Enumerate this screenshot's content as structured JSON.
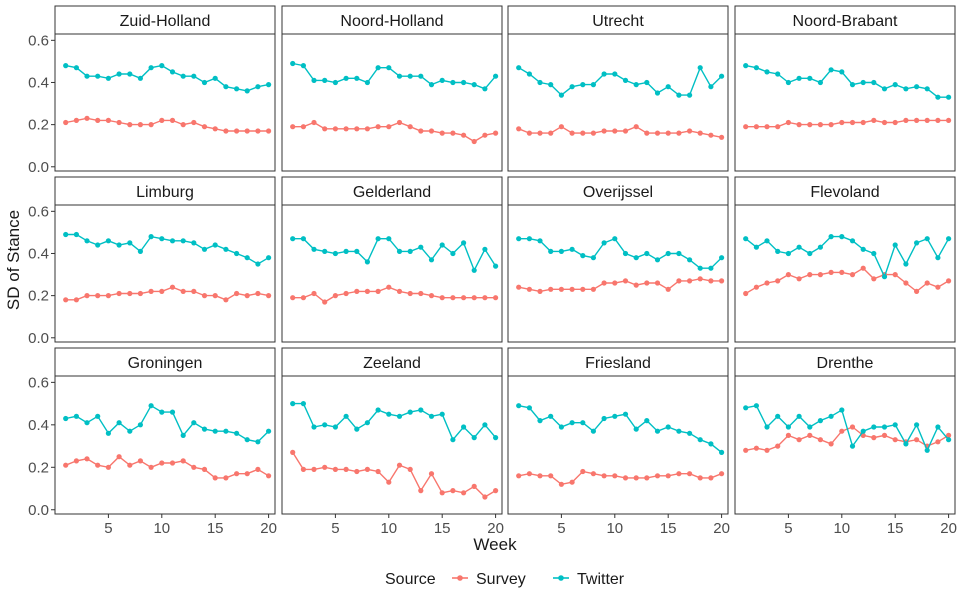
{
  "chart_data": {
    "type": "line",
    "xlabel": "Week",
    "ylabel": "SD of Stance",
    "x": [
      1,
      2,
      3,
      4,
      5,
      6,
      7,
      8,
      9,
      10,
      11,
      12,
      13,
      14,
      15,
      16,
      17,
      18,
      19,
      20
    ],
    "xlim": [
      0,
      20.6
    ],
    "ylim": [
      -0.02,
      0.63
    ],
    "xticks": [
      5,
      10,
      15,
      20
    ],
    "yticks": [
      0.0,
      0.2,
      0.4,
      0.6
    ],
    "ytick_labels": [
      "0.0",
      "0.2",
      "0.4",
      "0.6"
    ],
    "grid": false,
    "legend": {
      "title": "Source",
      "placement": "bottom",
      "entries": [
        {
          "name": "Survey",
          "color": "#F8766D"
        },
        {
          "name": "Twitter",
          "color": "#00BFC4"
        }
      ]
    },
    "series_colors": {
      "Survey": "#F8766D",
      "Twitter": "#00BFC4"
    },
    "facets": [
      {
        "title": "Zuid-Holland",
        "survey": [
          0.21,
          0.22,
          0.23,
          0.22,
          0.22,
          0.21,
          0.2,
          0.2,
          0.2,
          0.22,
          0.22,
          0.2,
          0.21,
          0.19,
          0.18,
          0.17,
          0.17,
          0.17,
          0.17,
          0.17
        ],
        "twitter": [
          0.48,
          0.47,
          0.43,
          0.43,
          0.42,
          0.44,
          0.44,
          0.42,
          0.47,
          0.48,
          0.45,
          0.43,
          0.43,
          0.4,
          0.42,
          0.38,
          0.37,
          0.36,
          0.38,
          0.39
        ]
      },
      {
        "title": "Noord-Holland",
        "survey": [
          0.19,
          0.19,
          0.21,
          0.18,
          0.18,
          0.18,
          0.18,
          0.18,
          0.19,
          0.19,
          0.21,
          0.19,
          0.17,
          0.17,
          0.16,
          0.16,
          0.15,
          0.12,
          0.15,
          0.16
        ],
        "twitter": [
          0.49,
          0.48,
          0.41,
          0.41,
          0.4,
          0.42,
          0.42,
          0.4,
          0.47,
          0.47,
          0.43,
          0.43,
          0.43,
          0.39,
          0.41,
          0.4,
          0.4,
          0.39,
          0.37,
          0.43
        ]
      },
      {
        "title": "Utrecht",
        "survey": [
          0.18,
          0.16,
          0.16,
          0.16,
          0.19,
          0.16,
          0.16,
          0.16,
          0.17,
          0.17,
          0.17,
          0.19,
          0.16,
          0.16,
          0.16,
          0.16,
          0.17,
          0.16,
          0.15,
          0.14
        ],
        "twitter": [
          0.47,
          0.44,
          0.4,
          0.39,
          0.34,
          0.38,
          0.39,
          0.39,
          0.44,
          0.44,
          0.41,
          0.39,
          0.4,
          0.35,
          0.38,
          0.34,
          0.34,
          0.47,
          0.38,
          0.43
        ]
      },
      {
        "title": "Noord-Brabant",
        "survey": [
          0.19,
          0.19,
          0.19,
          0.19,
          0.21,
          0.2,
          0.2,
          0.2,
          0.2,
          0.21,
          0.21,
          0.21,
          0.22,
          0.21,
          0.21,
          0.22,
          0.22,
          0.22,
          0.22,
          0.22
        ],
        "twitter": [
          0.48,
          0.47,
          0.45,
          0.44,
          0.4,
          0.42,
          0.42,
          0.4,
          0.46,
          0.45,
          0.39,
          0.4,
          0.4,
          0.37,
          0.39,
          0.37,
          0.38,
          0.37,
          0.33,
          0.33
        ]
      },
      {
        "title": "Limburg",
        "survey": [
          0.18,
          0.18,
          0.2,
          0.2,
          0.2,
          0.21,
          0.21,
          0.21,
          0.22,
          0.22,
          0.24,
          0.22,
          0.22,
          0.2,
          0.2,
          0.18,
          0.21,
          0.2,
          0.21,
          0.2
        ],
        "twitter": [
          0.49,
          0.49,
          0.46,
          0.44,
          0.46,
          0.44,
          0.45,
          0.41,
          0.48,
          0.47,
          0.46,
          0.46,
          0.45,
          0.42,
          0.44,
          0.42,
          0.4,
          0.38,
          0.35,
          0.38
        ]
      },
      {
        "title": "Gelderland",
        "survey": [
          0.19,
          0.19,
          0.21,
          0.17,
          0.2,
          0.21,
          0.22,
          0.22,
          0.22,
          0.24,
          0.22,
          0.21,
          0.21,
          0.2,
          0.19,
          0.19,
          0.19,
          0.19,
          0.19,
          0.19
        ],
        "twitter": [
          0.47,
          0.47,
          0.42,
          0.41,
          0.4,
          0.41,
          0.41,
          0.36,
          0.47,
          0.47,
          0.41,
          0.41,
          0.43,
          0.37,
          0.44,
          0.4,
          0.45,
          0.32,
          0.42,
          0.34
        ]
      },
      {
        "title": "Overijssel",
        "survey": [
          0.24,
          0.23,
          0.22,
          0.23,
          0.23,
          0.23,
          0.23,
          0.23,
          0.26,
          0.26,
          0.27,
          0.25,
          0.26,
          0.26,
          0.23,
          0.27,
          0.27,
          0.28,
          0.27,
          0.27
        ],
        "twitter": [
          0.47,
          0.47,
          0.46,
          0.41,
          0.41,
          0.42,
          0.39,
          0.38,
          0.45,
          0.47,
          0.4,
          0.38,
          0.4,
          0.37,
          0.4,
          0.4,
          0.37,
          0.33,
          0.33,
          0.38
        ]
      },
      {
        "title": "Flevoland",
        "survey": [
          0.21,
          0.24,
          0.26,
          0.27,
          0.3,
          0.28,
          0.3,
          0.3,
          0.31,
          0.31,
          0.3,
          0.33,
          0.28,
          0.3,
          0.3,
          0.26,
          0.22,
          0.26,
          0.24,
          0.27
        ],
        "twitter": [
          0.47,
          0.43,
          0.46,
          0.41,
          0.4,
          0.43,
          0.4,
          0.43,
          0.48,
          0.48,
          0.46,
          0.42,
          0.4,
          0.29,
          0.44,
          0.35,
          0.45,
          0.47,
          0.38,
          0.47
        ]
      },
      {
        "title": "Groningen",
        "survey": [
          0.21,
          0.23,
          0.24,
          0.21,
          0.2,
          0.25,
          0.21,
          0.23,
          0.2,
          0.22,
          0.22,
          0.23,
          0.2,
          0.19,
          0.15,
          0.15,
          0.17,
          0.17,
          0.19,
          0.16
        ],
        "twitter": [
          0.43,
          0.44,
          0.41,
          0.44,
          0.36,
          0.41,
          0.37,
          0.4,
          0.49,
          0.46,
          0.46,
          0.35,
          0.41,
          0.38,
          0.37,
          0.37,
          0.36,
          0.33,
          0.32,
          0.37
        ]
      },
      {
        "title": "Zeeland",
        "survey": [
          0.27,
          0.19,
          0.19,
          0.2,
          0.19,
          0.19,
          0.18,
          0.19,
          0.18,
          0.13,
          0.21,
          0.19,
          0.09,
          0.17,
          0.08,
          0.09,
          0.08,
          0.11,
          0.06,
          0.09
        ],
        "twitter": [
          0.5,
          0.5,
          0.39,
          0.4,
          0.39,
          0.44,
          0.38,
          0.41,
          0.47,
          0.45,
          0.44,
          0.46,
          0.47,
          0.44,
          0.45,
          0.33,
          0.39,
          0.34,
          0.4,
          0.34
        ]
      },
      {
        "title": "Friesland",
        "survey": [
          0.16,
          0.17,
          0.16,
          0.16,
          0.12,
          0.13,
          0.18,
          0.17,
          0.16,
          0.16,
          0.15,
          0.15,
          0.15,
          0.16,
          0.16,
          0.17,
          0.17,
          0.15,
          0.15,
          0.17
        ],
        "twitter": [
          0.49,
          0.48,
          0.42,
          0.44,
          0.39,
          0.41,
          0.41,
          0.37,
          0.43,
          0.44,
          0.45,
          0.38,
          0.42,
          0.37,
          0.39,
          0.37,
          0.36,
          0.33,
          0.31,
          0.27
        ]
      },
      {
        "title": "Drenthe",
        "survey": [
          0.28,
          0.29,
          0.28,
          0.3,
          0.35,
          0.33,
          0.35,
          0.33,
          0.31,
          0.37,
          0.39,
          0.35,
          0.34,
          0.35,
          0.33,
          0.32,
          0.33,
          0.3,
          0.32,
          0.35
        ],
        "twitter": [
          0.48,
          0.49,
          0.39,
          0.44,
          0.39,
          0.44,
          0.39,
          0.42,
          0.44,
          0.47,
          0.3,
          0.37,
          0.39,
          0.39,
          0.4,
          0.31,
          0.4,
          0.28,
          0.39,
          0.33
        ]
      }
    ]
  }
}
